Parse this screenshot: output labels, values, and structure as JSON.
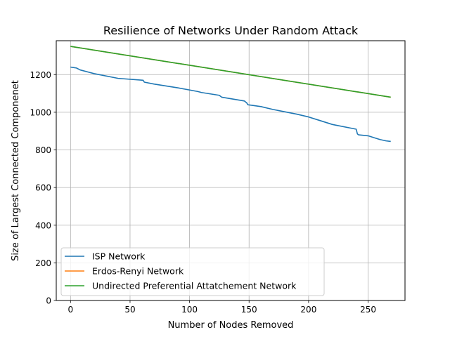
{
  "chart_data": {
    "type": "line",
    "title": "Resilience of Networks Under Random Attack",
    "xlabel": "Number of Nodes Removed",
    "ylabel": "Size of Largest Connected Componenet",
    "xlim": [
      -12,
      281
    ],
    "ylim": [
      0,
      1380
    ],
    "xticks": [
      0,
      50,
      100,
      150,
      200,
      250
    ],
    "yticks": [
      0,
      200,
      400,
      600,
      800,
      1000,
      1200
    ],
    "grid": true,
    "legend_position": "lower-left",
    "series": [
      {
        "name": "ISP Network",
        "color": "#1f77b4",
        "x": [
          0,
          5,
          8,
          20,
          40,
          61,
          62,
          70,
          90,
          107,
          110,
          125,
          126,
          127,
          146,
          148,
          149,
          160,
          170,
          178,
          190,
          200,
          210,
          220,
          240,
          241,
          242,
          250,
          255,
          260,
          265,
          269
        ],
        "y": [
          1240,
          1235,
          1225,
          1205,
          1180,
          1170,
          1160,
          1150,
          1130,
          1110,
          1105,
          1090,
          1085,
          1080,
          1060,
          1050,
          1040,
          1030,
          1015,
          1005,
          990,
          975,
          955,
          935,
          910,
          885,
          880,
          875,
          865,
          855,
          848,
          845
        ]
      },
      {
        "name": "Erdos-Renyi Network",
        "color": "#ff7f0e",
        "x": [
          0,
          269
        ],
        "y": [
          1350,
          1080
        ]
      },
      {
        "name": "Undirected Preferential Attatchement Network",
        "color": "#2ca02c",
        "x": [
          0,
          269
        ],
        "y": [
          1350,
          1080
        ]
      }
    ]
  }
}
